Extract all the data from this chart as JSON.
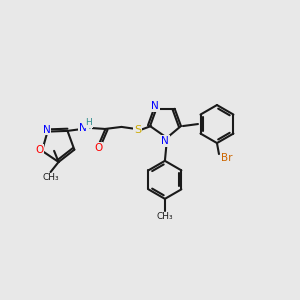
{
  "background_color": "#e8e8e8",
  "bond_color": "#1a1a1a",
  "atom_colors": {
    "N": "#0000ff",
    "O": "#ff0000",
    "S": "#ccaa00",
    "Br": "#cc6600",
    "H": "#2e8b8b",
    "C": "#1a1a1a"
  },
  "figsize": [
    3.0,
    3.0
  ],
  "dpi": 100
}
